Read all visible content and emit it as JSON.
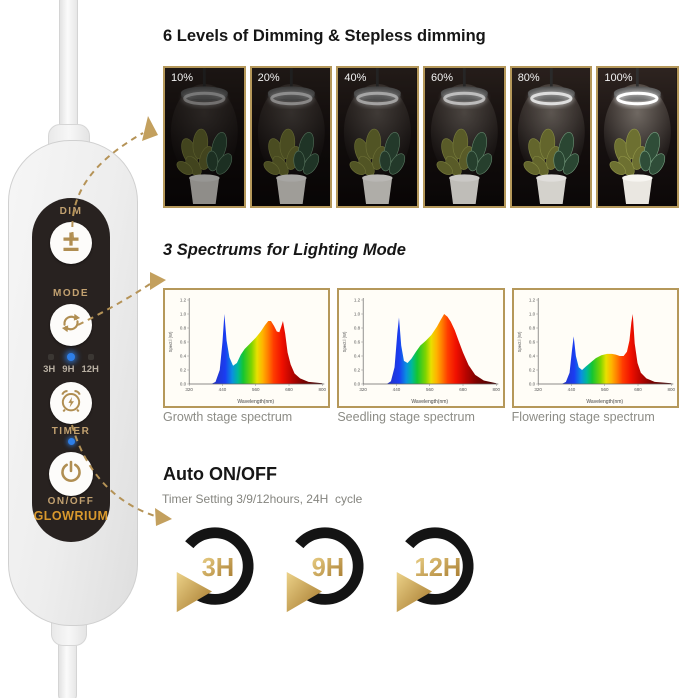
{
  "controller": {
    "brand": "GLOWRIUM",
    "labels": {
      "dim": "DIM",
      "mode": "MODE",
      "timer": "TIMER",
      "onoff": "ON/OFF"
    },
    "dim_symbol": "±",
    "led_options": [
      "3H",
      "9H",
      "12H"
    ],
    "active_led": "9H",
    "colors": {
      "label_gold": "#c2a170",
      "brand_gold": "#d9992d",
      "panel": "#282220",
      "led_blue": "#2e7fe8"
    }
  },
  "dimming": {
    "title": "6 Levels of Dimming & Stepless dimming",
    "frame_color": "#b5985a",
    "levels": [
      {
        "label": "10%",
        "brightness": 0.3
      },
      {
        "label": "20%",
        "brightness": 0.42
      },
      {
        "label": "40%",
        "brightness": 0.55
      },
      {
        "label": "60%",
        "brightness": 0.68
      },
      {
        "label": "80%",
        "brightness": 0.84
      },
      {
        "label": "100%",
        "brightness": 1.0
      }
    ]
  },
  "spectrums": {
    "title": "3 Spectrums for Lighting Mode",
    "captions": [
      "Growth stage spectrum",
      "Seedling stage spectrum",
      "Flowering stage spectrum"
    ]
  },
  "timer": {
    "title": "Auto ON/OFF",
    "subtitle": "Timer Setting 3/9/12hours, 24H  cycle",
    "options": [
      "3H",
      "9H",
      "12H"
    ],
    "gold": "#c49a3f"
  },
  "chart_data": [
    {
      "type": "area",
      "title": "Growth stage spectrum",
      "xlabel": "Wavelength(nm)",
      "ylabel": "Spect.l (W)",
      "xlim": [
        320,
        800
      ],
      "ylim": [
        0,
        1.2
      ],
      "xticks": [
        320,
        440,
        560,
        680,
        800
      ],
      "yticks": [
        0.0,
        0.2,
        0.4,
        0.6,
        0.8,
        1.0,
        1.2
      ],
      "x": [
        400,
        415,
        430,
        440,
        447,
        455,
        465,
        478,
        492,
        506,
        520,
        540,
        560,
        578,
        593,
        605,
        615,
        626,
        636,
        645,
        652,
        658,
        666,
        675,
        686,
        700,
        720,
        750,
        800
      ],
      "y": [
        0.0,
        0.03,
        0.2,
        0.6,
        1.0,
        0.62,
        0.38,
        0.26,
        0.3,
        0.42,
        0.5,
        0.58,
        0.66,
        0.75,
        0.84,
        0.9,
        0.9,
        0.83,
        0.75,
        0.74,
        0.82,
        0.9,
        0.72,
        0.45,
        0.28,
        0.15,
        0.08,
        0.03,
        0.01
      ]
    },
    {
      "type": "area",
      "title": "Seedling stage spectrum",
      "xlabel": "Wavelength(nm)",
      "ylabel": "Spect.l (W)",
      "xlim": [
        320,
        800
      ],
      "ylim": [
        0,
        1.2
      ],
      "xticks": [
        320,
        440,
        560,
        680,
        800
      ],
      "yticks": [
        0.0,
        0.2,
        0.4,
        0.6,
        0.8,
        1.0,
        1.2
      ],
      "x": [
        405,
        420,
        433,
        443,
        449,
        457,
        467,
        480,
        494,
        510,
        526,
        546,
        566,
        586,
        600,
        612,
        624,
        636,
        650,
        664,
        680,
        700,
        724,
        755,
        800
      ],
      "y": [
        0.0,
        0.04,
        0.24,
        0.72,
        0.95,
        0.55,
        0.33,
        0.3,
        0.36,
        0.46,
        0.55,
        0.62,
        0.7,
        0.82,
        0.92,
        1.0,
        0.96,
        0.89,
        0.77,
        0.62,
        0.45,
        0.27,
        0.13,
        0.05,
        0.01
      ]
    },
    {
      "type": "area",
      "title": "Flowering stage spectrum",
      "xlabel": "Wavelength(nm)",
      "ylabel": "Spect.l (W)",
      "xlim": [
        320,
        800
      ],
      "ylim": [
        0,
        1.2
      ],
      "xticks": [
        320,
        440,
        560,
        680,
        800
      ],
      "yticks": [
        0.0,
        0.2,
        0.4,
        0.6,
        0.8,
        1.0,
        1.2
      ],
      "x": [
        405,
        420,
        433,
        442,
        448,
        456,
        466,
        478,
        492,
        510,
        528,
        548,
        568,
        586,
        600,
        614,
        628,
        640,
        649,
        656,
        661,
        668,
        678,
        690,
        710,
        740,
        800
      ],
      "y": [
        0.0,
        0.03,
        0.16,
        0.48,
        0.68,
        0.4,
        0.24,
        0.2,
        0.25,
        0.31,
        0.37,
        0.41,
        0.43,
        0.43,
        0.42,
        0.4,
        0.4,
        0.46,
        0.62,
        0.88,
        1.0,
        0.58,
        0.3,
        0.16,
        0.08,
        0.03,
        0.01
      ]
    }
  ]
}
